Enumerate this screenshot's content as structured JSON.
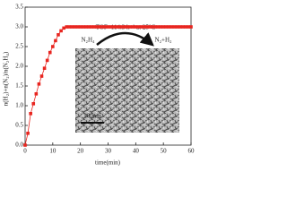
{
  "chart_data": {
    "type": "line",
    "x_label": "time(min)",
    "y_label": "n(H₂)+n(N₂)/n(N₂H₄)",
    "annotations": [
      "TOF=114.3 h⁻¹ at 25°C",
      "N₂H₄",
      "N₂+H₂",
      "100nm"
    ],
    "x": [
      0,
      1,
      2,
      3,
      4,
      5,
      6,
      7,
      8,
      9,
      10,
      11,
      12,
      13,
      14,
      15,
      16,
      17,
      18,
      19,
      20,
      21,
      22,
      23,
      24,
      25,
      26,
      27,
      28,
      29,
      30,
      31,
      32,
      33,
      34,
      35,
      36,
      37,
      38,
      39,
      40,
      41,
      42,
      43,
      44,
      45,
      46,
      47,
      48,
      49,
      50,
      51,
      52,
      53,
      54,
      55,
      56,
      57,
      58,
      59,
      60
    ],
    "series": [
      {
        "name": "n(H₂)+n(N₂)/n(N₂H₄)",
        "color": "#e8251f",
        "values": [
          0,
          0.3,
          0.8,
          1.05,
          1.3,
          1.55,
          1.75,
          1.95,
          2.15,
          2.35,
          2.5,
          2.65,
          2.8,
          2.9,
          2.97,
          3,
          3,
          3,
          3,
          3,
          3,
          3,
          3,
          3,
          3,
          3,
          3,
          3,
          3,
          3,
          3,
          3,
          3,
          3,
          3,
          3,
          3,
          3,
          3,
          3,
          3,
          3,
          3,
          3,
          3,
          3,
          3,
          3,
          3,
          3,
          3,
          3,
          3,
          3,
          3,
          3,
          3,
          3,
          3,
          3,
          3
        ]
      }
    ],
    "xlim": [
      0,
      60
    ],
    "xticks": [
      0,
      10,
      20,
      30,
      40,
      50,
      60
    ],
    "ylim": [
      0,
      3.5
    ],
    "yticks": [
      {
        "value": 0,
        "label": "0.0"
      },
      0.5,
      {
        "value": 1,
        "label": "1.0"
      },
      1.5,
      {
        "value": 2,
        "label": "2.0"
      },
      2.5,
      {
        "value": 3,
        "label": "3.0"
      },
      3.5
    ]
  }
}
